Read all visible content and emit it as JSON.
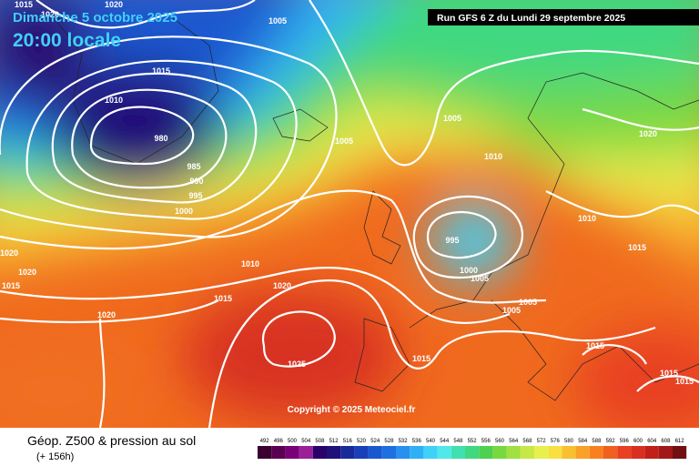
{
  "header": {
    "date": "Dimanche 5 octobre 2025",
    "time": "20:00 locale",
    "run": "Run GFS 6 Z du Lundi 29 septembre 2025"
  },
  "map": {
    "isobar_labels": [
      1015,
      1020,
      1020,
      1005,
      1015,
      1010,
      980,
      985,
      990,
      995,
      1000,
      1005,
      1005,
      1010,
      1020,
      1010,
      995,
      1000,
      1005,
      1015,
      1020,
      1020,
      1015,
      1010,
      1020,
      1015,
      1020,
      1005,
      1005,
      1025,
      1015,
      1015,
      1015,
      1015
    ],
    "copyright": "Copyright © 2025 Meteociel.fr"
  },
  "footer": {
    "title": "Géop. Z500 & pression au sol",
    "lead": "(+ 156h)"
  },
  "legend": {
    "values": [
      492,
      496,
      500,
      504,
      508,
      512,
      516,
      520,
      524,
      528,
      532,
      536,
      540,
      544,
      548,
      552,
      556,
      560,
      564,
      568,
      572,
      576,
      580,
      584,
      588,
      592,
      596,
      600,
      604,
      608,
      612
    ],
    "colors": [
      "#3a0030",
      "#5a0050",
      "#7a0078",
      "#9a2098",
      "#2a006a",
      "#20107a",
      "#1a2a9a",
      "#1a40b8",
      "#1a58d0",
      "#1e70e0",
      "#2890ee",
      "#30b0f4",
      "#40d0f8",
      "#50e8e8",
      "#40e0b0",
      "#40d880",
      "#50d050",
      "#78d840",
      "#a0e040",
      "#c8e848",
      "#e8f050",
      "#f8e040",
      "#f8c030",
      "#f8a028",
      "#f88020",
      "#f06020",
      "#e84020",
      "#d83020",
      "#c02018",
      "#a01818",
      "#701010"
    ]
  }
}
